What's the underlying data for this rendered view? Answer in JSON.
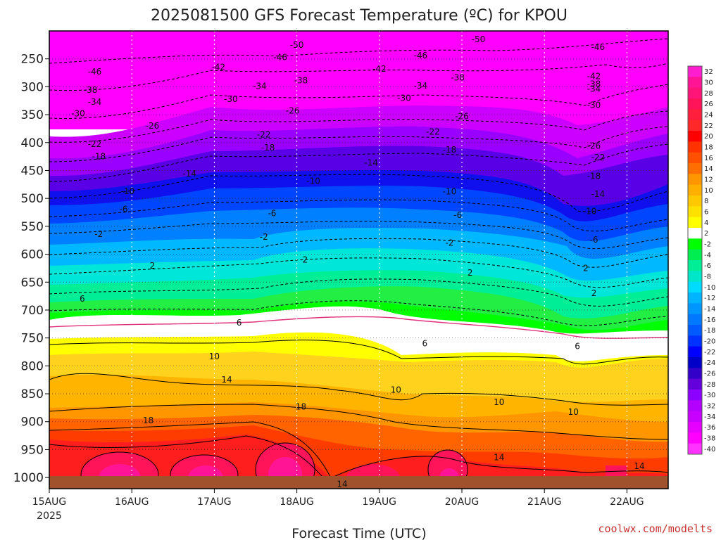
{
  "chart_data": {
    "type": "heatmap",
    "title": "2025081500 GFS Forecast Temperature (ºC) for KPOU",
    "xlabel": "Forecast Time (UTC)",
    "ylabel": "",
    "x_ticks": [
      "15AUG",
      "16AUG",
      "17AUG",
      "18AUG",
      "19AUG",
      "20AUG",
      "21AUG",
      "22AUG"
    ],
    "x_year": "2025",
    "x_range_days": [
      0,
      7.5
    ],
    "y_ticks": [
      250,
      300,
      350,
      400,
      450,
      500,
      550,
      600,
      650,
      700,
      750,
      800,
      850,
      900,
      950,
      1000
    ],
    "y_range_hpa": [
      200,
      1020
    ],
    "colorbar_labels": [
      "32",
      "30",
      "28",
      "26",
      "24",
      "22",
      "20",
      "18",
      "16",
      "14",
      "12",
      "10",
      "8",
      "6",
      "4",
      "2",
      "-2",
      "-4",
      "-6",
      "-8",
      "-10",
      "-12",
      "-14",
      "-16",
      "-18",
      "-20",
      "-22",
      "-24",
      "-26",
      "-28",
      "-30",
      "-32",
      "-34",
      "-36",
      "-38",
      "-40"
    ],
    "colorbar_colors": [
      "#ff1ecf",
      "#ff1496",
      "#ff1478",
      "#ff145a",
      "#ff1e3c",
      "#ff2828",
      "#ff0000",
      "#ff3200",
      "#ff5000",
      "#ff6e00",
      "#ff9600",
      "#ffaf00",
      "#ffc800",
      "#ffe100",
      "#ffff00",
      "#ffffff",
      "#00ff00",
      "#00ee50",
      "#00ee96",
      "#00e6c8",
      "#00dcff",
      "#00b4ff",
      "#0096ff",
      "#0078ff",
      "#005aff",
      "#0032ff",
      "#0000ff",
      "#0000c8",
      "#3200c8",
      "#6400dc",
      "#8c00ff",
      "#b400ff",
      "#c800ff",
      "#e600ff",
      "#ff00ff",
      "#ff32ff"
    ],
    "contour_labels": [
      {
        "v": "-50",
        "day": 3.0,
        "p": 225
      },
      {
        "v": "-50",
        "day": 5.2,
        "p": 215
      },
      {
        "v": "-46",
        "day": 0.55,
        "p": 273
      },
      {
        "v": "-46",
        "day": 2.8,
        "p": 247
      },
      {
        "v": "-46",
        "day": 4.5,
        "p": 244
      },
      {
        "v": "-46",
        "day": 6.65,
        "p": 229
      },
      {
        "v": "-42",
        "day": 2.05,
        "p": 265
      },
      {
        "v": "-42",
        "day": 4.0,
        "p": 268
      },
      {
        "v": "-42",
        "day": 6.6,
        "p": 281
      },
      {
        "v": "-38",
        "day": 0.5,
        "p": 306
      },
      {
        "v": "-38",
        "day": 3.05,
        "p": 289
      },
      {
        "v": "-38",
        "day": 4.95,
        "p": 284
      },
      {
        "v": "-38",
        "day": 6.6,
        "p": 295
      },
      {
        "v": "-34",
        "day": 0.55,
        "p": 327
      },
      {
        "v": "-34",
        "day": 2.55,
        "p": 299
      },
      {
        "v": "-34",
        "day": 4.5,
        "p": 298
      },
      {
        "v": "-34",
        "day": 6.6,
        "p": 304
      },
      {
        "v": "-30",
        "day": 0.35,
        "p": 348
      },
      {
        "v": "-30",
        "day": 2.2,
        "p": 322
      },
      {
        "v": "-30",
        "day": 4.3,
        "p": 320
      },
      {
        "v": "-30",
        "day": 6.6,
        "p": 333
      },
      {
        "v": "-26",
        "day": 1.25,
        "p": 370
      },
      {
        "v": "-26",
        "day": 2.95,
        "p": 343
      },
      {
        "v": "-26",
        "day": 5.0,
        "p": 353
      },
      {
        "v": "-26",
        "day": 6.6,
        "p": 406
      },
      {
        "v": "-22",
        "day": 0.55,
        "p": 403
      },
      {
        "v": "-22",
        "day": 2.6,
        "p": 386
      },
      {
        "v": "-22",
        "day": 4.65,
        "p": 381
      },
      {
        "v": "-22",
        "day": 6.65,
        "p": 427
      },
      {
        "v": "-18",
        "day": 0.6,
        "p": 425
      },
      {
        "v": "-18",
        "day": 2.65,
        "p": 409
      },
      {
        "v": "-18",
        "day": 4.85,
        "p": 413
      },
      {
        "v": "-18",
        "day": 6.6,
        "p": 460
      },
      {
        "v": "-14",
        "day": 1.7,
        "p": 456
      },
      {
        "v": "-14",
        "day": 3.9,
        "p": 436
      },
      {
        "v": "-14",
        "day": 6.65,
        "p": 492
      },
      {
        "v": "-10",
        "day": 0.95,
        "p": 487
      },
      {
        "v": "-10",
        "day": 3.2,
        "p": 469
      },
      {
        "v": "-10",
        "day": 4.85,
        "p": 488
      },
      {
        "v": "-10",
        "day": 6.55,
        "p": 523
      },
      {
        "v": "-6",
        "day": 0.9,
        "p": 519
      },
      {
        "v": "-6",
        "day": 2.7,
        "p": 527
      },
      {
        "v": "-6",
        "day": 4.95,
        "p": 530
      },
      {
        "v": "-6",
        "day": 6.6,
        "p": 574
      },
      {
        "v": "-2",
        "day": 0.6,
        "p": 564
      },
      {
        "v": "-2",
        "day": 2.6,
        "p": 569
      },
      {
        "v": "-2",
        "day": 4.85,
        "p": 580
      },
      {
        "v": "2",
        "day": 1.25,
        "p": 621
      },
      {
        "v": "2",
        "day": 3.1,
        "p": 610
      },
      {
        "v": "2",
        "day": 5.1,
        "p": 633
      },
      {
        "v": "2",
        "day": 6.5,
        "p": 625
      },
      {
        "v": "2",
        "day": 6.6,
        "p": 670
      },
      {
        "v": "6",
        "day": 0.4,
        "p": 680
      },
      {
        "v": "6",
        "day": 2.3,
        "p": 723
      },
      {
        "v": "6",
        "day": 4.55,
        "p": 760
      },
      {
        "v": "6",
        "day": 6.4,
        "p": 765
      },
      {
        "v": "10",
        "day": 2.0,
        "p": 783
      },
      {
        "v": "10",
        "day": 4.2,
        "p": 843
      },
      {
        "v": "10",
        "day": 5.45,
        "p": 865
      },
      {
        "v": "10",
        "day": 6.35,
        "p": 883
      },
      {
        "v": "14",
        "day": 2.15,
        "p": 825
      },
      {
        "v": "14",
        "day": 3.55,
        "p": 1012
      },
      {
        "v": "14",
        "day": 5.45,
        "p": 964
      },
      {
        "v": "14",
        "day": 7.15,
        "p": 980
      },
      {
        "v": "18",
        "day": 1.2,
        "p": 898
      },
      {
        "v": "18",
        "day": 3.05,
        "p": 873
      }
    ]
  },
  "credit": "coolwx.com/modelts"
}
